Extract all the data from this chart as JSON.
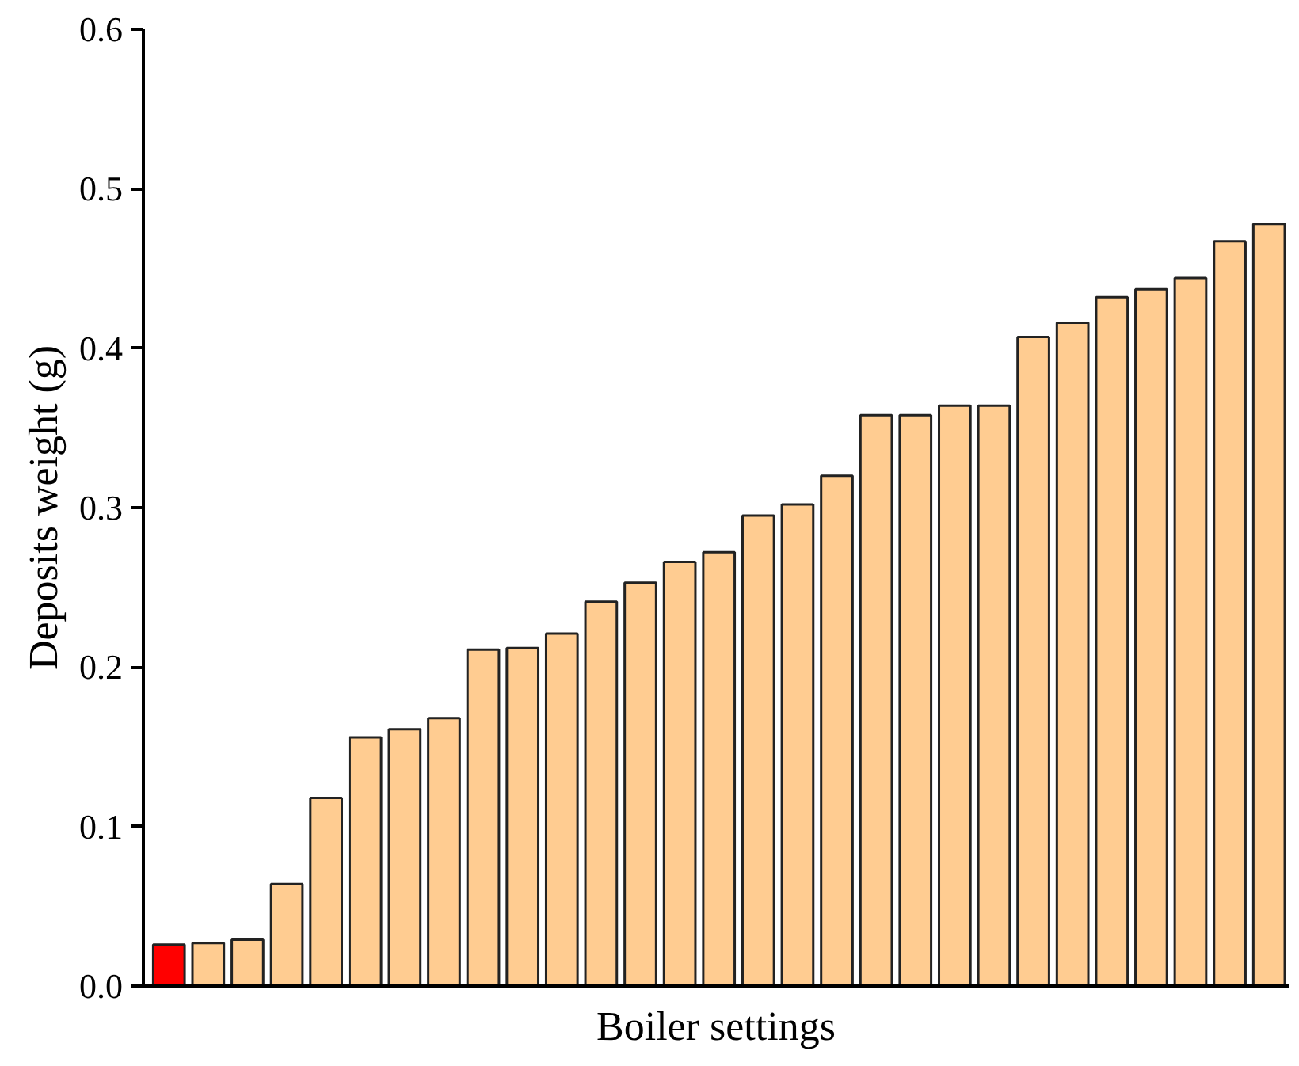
{
  "chart_data": {
    "type": "bar",
    "xlabel": "Boiler settings",
    "ylabel": "Deposits weight (g)",
    "categories": [
      null,
      null,
      null,
      null,
      null,
      null,
      null,
      null,
      null,
      null,
      null,
      null,
      null,
      null,
      null,
      null,
      null,
      null,
      null,
      null,
      null,
      null,
      null,
      null,
      null,
      null,
      null,
      null,
      null
    ],
    "values": [
      0.026,
      0.027,
      0.029,
      0.064,
      0.118,
      0.156,
      0.161,
      0.168,
      0.211,
      0.212,
      0.221,
      0.241,
      0.253,
      0.266,
      0.272,
      0.295,
      0.302,
      0.32,
      0.358,
      0.358,
      0.364,
      0.364,
      0.407,
      0.416,
      0.432,
      0.437,
      0.444,
      0.467,
      0.478
    ],
    "colors": [
      "#ff0000",
      "#ffcc91",
      "#ffcc91",
      "#ffcc91",
      "#ffcc91",
      "#ffcc91",
      "#ffcc91",
      "#ffcc91",
      "#ffcc91",
      "#ffcc91",
      "#ffcc91",
      "#ffcc91",
      "#ffcc91",
      "#ffcc91",
      "#ffcc91",
      "#ffcc91",
      "#ffcc91",
      "#ffcc91",
      "#ffcc91",
      "#ffcc91",
      "#ffcc91",
      "#ffcc91",
      "#ffcc91",
      "#ffcc91",
      "#ffcc91",
      "#ffcc91",
      "#ffcc91",
      "#ffcc91",
      "#ffcc91"
    ],
    "ylim": [
      0.0,
      0.6
    ],
    "yticks": [
      {
        "value": 0.0,
        "label": "0.0"
      },
      {
        "value": 0.1,
        "label": "0.1"
      },
      {
        "value": 0.2,
        "label": "0.2"
      },
      {
        "value": 0.3,
        "label": "0.3"
      },
      {
        "value": 0.4,
        "label": "0.4"
      },
      {
        "value": 0.5,
        "label": "0.5"
      },
      {
        "value": 0.6,
        "label": "0.6"
      }
    ],
    "grid": false
  }
}
